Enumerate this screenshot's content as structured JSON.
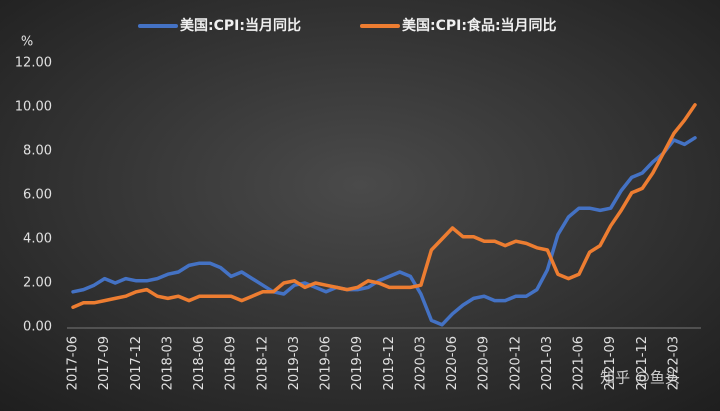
{
  "chart_data": {
    "type": "line",
    "y_unit": "%",
    "categories": [
      "2017-06",
      null,
      null,
      "2017-09",
      null,
      null,
      "2017-12",
      null,
      null,
      "2018-03",
      null,
      null,
      "2018-06",
      null,
      null,
      "2018-09",
      null,
      null,
      "2018-12",
      null,
      null,
      "2019-03",
      null,
      null,
      "2019-06",
      null,
      null,
      "2019-09",
      null,
      null,
      "2019-12",
      null,
      null,
      "2020-03",
      null,
      null,
      "2020-06",
      null,
      null,
      "2020-09",
      null,
      null,
      "2020-12",
      null,
      null,
      "2021-03",
      null,
      null,
      "2021-06",
      null,
      null,
      "2021-09",
      null,
      null,
      "2021-12",
      null,
      null,
      "2022-03",
      null,
      null
    ],
    "series": [
      {
        "name": "美国:CPI:当月同比",
        "color": "#4472c4",
        "values": [
          1.6,
          1.7,
          1.9,
          2.2,
          2.0,
          2.2,
          2.1,
          2.1,
          2.2,
          2.4,
          2.5,
          2.8,
          2.9,
          2.9,
          2.7,
          2.3,
          2.5,
          2.2,
          1.9,
          1.6,
          1.5,
          1.9,
          2.0,
          1.8,
          1.6,
          1.8,
          1.7,
          1.7,
          1.8,
          2.1,
          2.3,
          2.5,
          2.3,
          1.5,
          0.3,
          0.1,
          0.6,
          1.0,
          1.3,
          1.4,
          1.2,
          1.2,
          1.4,
          1.4,
          1.7,
          2.6,
          4.2,
          5.0,
          5.4,
          5.4,
          5.3,
          5.4,
          6.2,
          6.8,
          7.0,
          7.5,
          7.9,
          8.5,
          8.3,
          8.6
        ]
      },
      {
        "name": "美国:CPI:食品:当月同比",
        "color": "#ed7d31",
        "values": [
          0.9,
          1.1,
          1.1,
          1.2,
          1.3,
          1.4,
          1.6,
          1.7,
          1.4,
          1.3,
          1.4,
          1.2,
          1.4,
          1.4,
          1.4,
          1.4,
          1.2,
          1.4,
          1.6,
          1.6,
          2.0,
          2.1,
          1.8,
          2.0,
          1.9,
          1.8,
          1.7,
          1.8,
          2.1,
          2.0,
          1.8,
          1.8,
          1.8,
          1.9,
          3.5,
          4.0,
          4.5,
          4.1,
          4.1,
          3.9,
          3.9,
          3.7,
          3.9,
          3.8,
          3.6,
          3.5,
          2.4,
          2.2,
          2.4,
          3.4,
          3.7,
          4.6,
          5.3,
          6.1,
          6.3,
          7.0,
          7.9,
          8.8,
          9.4,
          10.1
        ]
      }
    ],
    "ylim": [
      0,
      12
    ],
    "yticks": [
      {
        "value": 0,
        "label": "0.00"
      },
      {
        "value": 2,
        "label": "2.00"
      },
      {
        "value": 4,
        "label": "4.00"
      },
      {
        "value": 6,
        "label": "6.00"
      },
      {
        "value": 8,
        "label": "8.00"
      },
      {
        "value": 10,
        "label": "10.00"
      },
      {
        "value": 12,
        "label": "12.00"
      }
    ],
    "grid": false,
    "legend": "top",
    "watermark": "知乎 @鱼头"
  }
}
